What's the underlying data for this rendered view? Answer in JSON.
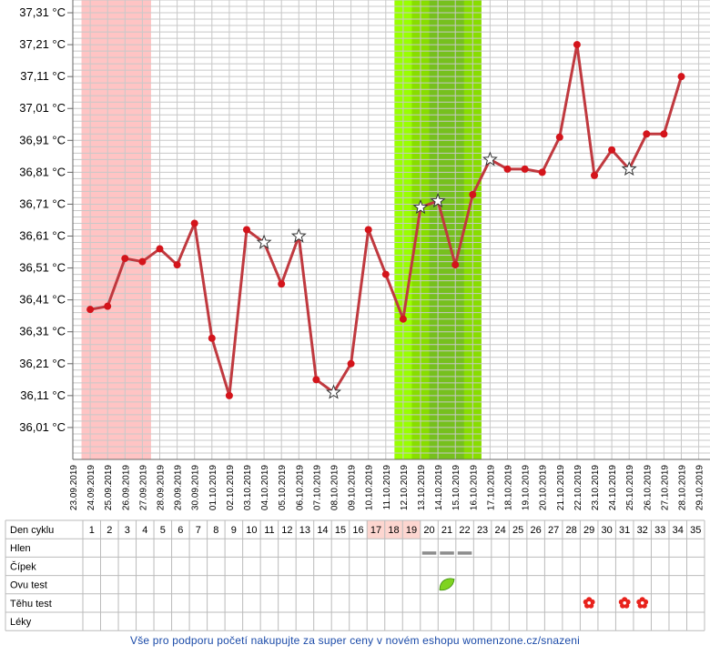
{
  "chart_data": {
    "type": "line",
    "y_tick_labels": [
      "36,01 °C",
      "36,11 °C",
      "36,21 °C",
      "36,31 °C",
      "36,41 °C",
      "36,51 °C",
      "36,61 °C",
      "36,71 °C",
      "36,81 °C",
      "36,91 °C",
      "37,01 °C",
      "37,11 °C",
      "37,21 °C",
      "37,31 °C"
    ],
    "ylim": [
      35.91,
      37.35
    ],
    "grid": true,
    "dates": [
      "23.09.2019",
      "24.09.2019",
      "25.09.2019",
      "26.09.2019",
      "27.09.2019",
      "28.09.2019",
      "29.09.2019",
      "30.09.2019",
      "01.10.2019",
      "02.10.2019",
      "03.10.2019",
      "04.10.2019",
      "05.10.2019",
      "06.10.2019",
      "07.10.2019",
      "08.10.2019",
      "09.10.2019",
      "10.10.2019",
      "11.10.2019",
      "12.10.2019",
      "13.10.2019",
      "14.10.2019",
      "15.10.2019",
      "16.10.2019",
      "17.10.2019",
      "18.10.2019",
      "19.10.2019",
      "20.10.2019",
      "21.10.2019",
      "22.10.2019",
      "23.10.2019",
      "24.10.2019",
      "25.10.2019",
      "26.10.2019",
      "27.10.2019",
      "28.10.2019",
      "29.10.2019"
    ],
    "series": [
      {
        "color": "#c0393f",
        "points": [
          {
            "x": "24.09.2019",
            "y": 36.38
          },
          {
            "x": "25.09.2019",
            "y": 36.39
          },
          {
            "x": "26.09.2019",
            "y": 36.54
          },
          {
            "x": "27.09.2019",
            "y": 36.53
          },
          {
            "x": "28.09.2019",
            "y": 36.57
          },
          {
            "x": "29.09.2019",
            "y": 36.52
          },
          {
            "x": "30.09.2019",
            "y": 36.65
          },
          {
            "x": "01.10.2019",
            "y": 36.29
          },
          {
            "x": "02.10.2019",
            "y": 36.11
          },
          {
            "x": "03.10.2019",
            "y": 36.63
          },
          {
            "x": "04.10.2019",
            "y": 36.59,
            "marker": "star"
          },
          {
            "x": "05.10.2019",
            "y": 36.46
          },
          {
            "x": "06.10.2019",
            "y": 36.61,
            "marker": "star"
          },
          {
            "x": "07.10.2019",
            "y": 36.16
          },
          {
            "x": "08.10.2019",
            "y": 36.12,
            "marker": "star"
          },
          {
            "x": "09.10.2019",
            "y": 36.21
          },
          {
            "x": "10.10.2019",
            "y": 36.63
          },
          {
            "x": "11.10.2019",
            "y": 36.49
          },
          {
            "x": "12.10.2019",
            "y": 36.35
          },
          {
            "x": "13.10.2019",
            "y": 36.7,
            "marker": "star"
          },
          {
            "x": "14.10.2019",
            "y": 36.72,
            "marker": "star"
          },
          {
            "x": "15.10.2019",
            "y": 36.52
          },
          {
            "x": "16.10.2019",
            "y": 36.74
          },
          {
            "x": "17.10.2019",
            "y": 36.85,
            "marker": "star"
          },
          {
            "x": "18.10.2019",
            "y": 36.82
          },
          {
            "x": "19.10.2019",
            "y": 36.82
          },
          {
            "x": "20.10.2019",
            "y": 36.81
          },
          {
            "x": "21.10.2019",
            "y": 36.92
          },
          {
            "x": "22.10.2019",
            "y": 37.21
          },
          {
            "x": "23.10.2019",
            "y": 36.8
          },
          {
            "x": "24.10.2019",
            "y": 36.88
          },
          {
            "x": "25.10.2019",
            "y": 36.82,
            "marker": "star"
          },
          {
            "x": "26.10.2019",
            "y": 36.93
          },
          {
            "x": "27.10.2019",
            "y": 36.93
          },
          {
            "x": "28.10.2019",
            "y": 37.11
          }
        ]
      }
    ],
    "shaded_ranges": [
      {
        "from": "24.09.2019",
        "to": "27.09.2019",
        "color": "#ffc4c4"
      },
      {
        "from": "12.10.2019",
        "to": "16.10.2019",
        "color": "#99ff00"
      },
      {
        "from": "13.10.2019",
        "to": "16.10.2019",
        "color": "#88dd00"
      },
      {
        "from": "14.10.2019",
        "to": "15.10.2019",
        "color": "#76c01e"
      }
    ]
  },
  "table": {
    "row_labels": [
      "Den cyklu",
      "Hlen",
      "Čípek",
      "Ovu test",
      "Těhu test",
      "Léky"
    ],
    "cycle_days": [
      "1",
      "2",
      "3",
      "4",
      "5",
      "6",
      "7",
      "8",
      "9",
      "10",
      "11",
      "12",
      "13",
      "14",
      "15",
      "16",
      "17",
      "18",
      "19",
      "20",
      "21",
      "22",
      "23",
      "24",
      "25",
      "26",
      "27",
      "28",
      "29",
      "30",
      "31",
      "32",
      "33",
      "34",
      "35"
    ],
    "highlight_days": [
      "17",
      "18",
      "19"
    ],
    "highlight_color": "#fdd6d0",
    "hlen_days": [
      "20",
      "21",
      "22"
    ],
    "ovu_positive_days": [
      "21"
    ],
    "tehu_test_days": [
      "29",
      "31",
      "32"
    ]
  },
  "footer": {
    "text": "Vše pro podporu početí nakupujte za super ceny v novém eshopu womenzone.cz/snazeni",
    "color": "#1a4aa8"
  }
}
